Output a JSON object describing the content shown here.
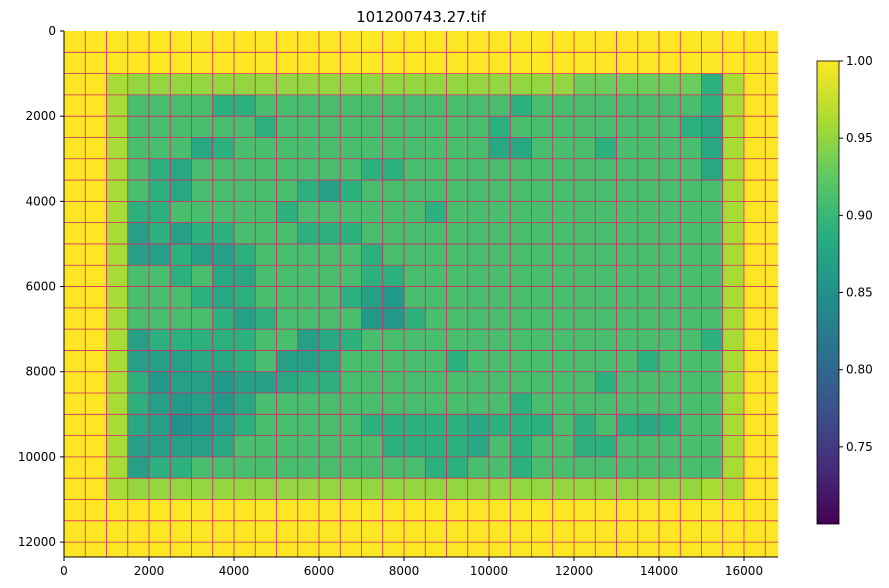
{
  "chart_data": {
    "type": "heatmap",
    "title": "101200743.27.tif",
    "xlabel": "",
    "ylabel": "",
    "xlim": [
      0,
      16800
    ],
    "ylim": [
      12350,
      0
    ],
    "cell_size": 500,
    "x_ticks": [
      0,
      2000,
      4000,
      6000,
      8000,
      10000,
      12000,
      14000,
      16000
    ],
    "y_ticks": [
      0,
      2000,
      4000,
      6000,
      8000,
      10000,
      12000
    ],
    "colorbar": {
      "colormap": "viridis",
      "range": [
        0.7,
        1.0
      ],
      "ticks": [
        "0.75",
        "0.80",
        "0.85",
        "0.90",
        "0.95",
        "1.00"
      ]
    },
    "grid_line_color": "#d6266a",
    "values": [
      [
        1.0,
        1.0,
        1.0,
        1.0,
        1.0,
        1.0,
        1.0,
        1.0,
        1.0,
        1.0,
        1.0,
        1.0,
        1.0,
        1.0,
        1.0,
        1.0,
        1.0,
        1.0,
        1.0,
        1.0,
        1.0,
        1.0,
        1.0,
        1.0,
        1.0,
        1.0,
        1.0,
        1.0,
        1.0,
        1.0,
        1.0,
        1.0,
        1.0,
        1.0
      ],
      [
        1.0,
        1.0,
        1.0,
        1.0,
        1.0,
        1.0,
        1.0,
        1.0,
        1.0,
        1.0,
        1.0,
        1.0,
        1.0,
        1.0,
        1.0,
        1.0,
        1.0,
        1.0,
        1.0,
        1.0,
        1.0,
        1.0,
        1.0,
        1.0,
        1.0,
        1.0,
        1.0,
        1.0,
        1.0,
        1.0,
        1.0,
        1.0,
        1.0,
        1.0
      ],
      [
        1.0,
        1.0,
        0.96,
        0.95,
        0.95,
        0.95,
        0.95,
        0.95,
        0.95,
        0.95,
        0.95,
        0.95,
        0.95,
        0.95,
        0.95,
        0.95,
        0.95,
        0.95,
        0.95,
        0.95,
        0.95,
        0.95,
        0.95,
        0.95,
        0.93,
        0.93,
        0.93,
        0.93,
        0.93,
        0.93,
        0.89,
        0.96,
        1.0,
        1.0
      ],
      [
        1.0,
        1.0,
        0.96,
        0.91,
        0.91,
        0.91,
        0.91,
        0.89,
        0.89,
        0.91,
        0.91,
        0.91,
        0.91,
        0.91,
        0.91,
        0.91,
        0.91,
        0.91,
        0.91,
        0.91,
        0.91,
        0.89,
        0.91,
        0.91,
        0.91,
        0.91,
        0.91,
        0.91,
        0.91,
        0.91,
        0.89,
        0.96,
        1.0,
        1.0
      ],
      [
        1.0,
        1.0,
        0.96,
        0.91,
        0.91,
        0.91,
        0.91,
        0.91,
        0.91,
        0.89,
        0.91,
        0.91,
        0.91,
        0.91,
        0.91,
        0.91,
        0.91,
        0.91,
        0.91,
        0.91,
        0.89,
        0.91,
        0.91,
        0.91,
        0.91,
        0.91,
        0.91,
        0.91,
        0.91,
        0.89,
        0.88,
        0.96,
        1.0,
        1.0
      ],
      [
        1.0,
        1.0,
        0.96,
        0.91,
        0.91,
        0.91,
        0.88,
        0.89,
        0.91,
        0.91,
        0.91,
        0.91,
        0.91,
        0.91,
        0.91,
        0.91,
        0.91,
        0.91,
        0.91,
        0.91,
        0.88,
        0.88,
        0.91,
        0.91,
        0.91,
        0.89,
        0.91,
        0.91,
        0.91,
        0.91,
        0.88,
        0.96,
        1.0,
        1.0
      ],
      [
        1.0,
        1.0,
        0.96,
        0.91,
        0.89,
        0.88,
        0.91,
        0.91,
        0.91,
        0.91,
        0.91,
        0.91,
        0.91,
        0.91,
        0.89,
        0.89,
        0.91,
        0.91,
        0.91,
        0.91,
        0.91,
        0.91,
        0.91,
        0.91,
        0.91,
        0.91,
        0.91,
        0.91,
        0.91,
        0.91,
        0.88,
        0.96,
        1.0,
        1.0
      ],
      [
        1.0,
        1.0,
        0.96,
        0.91,
        0.89,
        0.88,
        0.91,
        0.91,
        0.91,
        0.91,
        0.91,
        0.89,
        0.87,
        0.89,
        0.91,
        0.91,
        0.91,
        0.91,
        0.91,
        0.91,
        0.91,
        0.91,
        0.91,
        0.91,
        0.91,
        0.91,
        0.91,
        0.91,
        0.91,
        0.91,
        0.91,
        0.96,
        1.0,
        1.0
      ],
      [
        1.0,
        1.0,
        0.96,
        0.89,
        0.89,
        0.91,
        0.91,
        0.91,
        0.91,
        0.91,
        0.89,
        0.91,
        0.91,
        0.91,
        0.91,
        0.91,
        0.91,
        0.89,
        0.91,
        0.91,
        0.91,
        0.91,
        0.91,
        0.91,
        0.91,
        0.91,
        0.91,
        0.91,
        0.91,
        0.91,
        0.91,
        0.96,
        1.0,
        1.0
      ],
      [
        1.0,
        1.0,
        0.96,
        0.87,
        0.89,
        0.87,
        0.89,
        0.89,
        0.91,
        0.91,
        0.91,
        0.89,
        0.89,
        0.89,
        0.91,
        0.91,
        0.91,
        0.91,
        0.91,
        0.91,
        0.91,
        0.91,
        0.91,
        0.91,
        0.91,
        0.91,
        0.91,
        0.91,
        0.91,
        0.91,
        0.91,
        0.96,
        1.0,
        1.0
      ],
      [
        1.0,
        1.0,
        0.96,
        0.87,
        0.87,
        0.89,
        0.87,
        0.87,
        0.89,
        0.91,
        0.91,
        0.91,
        0.91,
        0.91,
        0.89,
        0.91,
        0.91,
        0.91,
        0.91,
        0.91,
        0.91,
        0.91,
        0.91,
        0.91,
        0.91,
        0.91,
        0.91,
        0.91,
        0.91,
        0.91,
        0.91,
        0.96,
        1.0,
        1.0
      ],
      [
        1.0,
        1.0,
        0.96,
        0.91,
        0.91,
        0.89,
        0.91,
        0.88,
        0.88,
        0.91,
        0.91,
        0.91,
        0.91,
        0.91,
        0.89,
        0.89,
        0.91,
        0.91,
        0.91,
        0.91,
        0.91,
        0.91,
        0.91,
        0.91,
        0.91,
        0.91,
        0.91,
        0.91,
        0.91,
        0.91,
        0.91,
        0.96,
        1.0,
        1.0
      ],
      [
        1.0,
        1.0,
        0.96,
        0.91,
        0.91,
        0.91,
        0.89,
        0.88,
        0.89,
        0.91,
        0.91,
        0.91,
        0.91,
        0.89,
        0.87,
        0.86,
        0.91,
        0.91,
        0.91,
        0.91,
        0.91,
        0.91,
        0.91,
        0.91,
        0.91,
        0.91,
        0.91,
        0.91,
        0.91,
        0.91,
        0.91,
        0.96,
        1.0,
        1.0
      ],
      [
        1.0,
        1.0,
        0.96,
        0.91,
        0.91,
        0.91,
        0.91,
        0.89,
        0.87,
        0.89,
        0.91,
        0.91,
        0.91,
        0.91,
        0.86,
        0.86,
        0.89,
        0.91,
        0.91,
        0.91,
        0.91,
        0.91,
        0.91,
        0.91,
        0.91,
        0.91,
        0.91,
        0.91,
        0.91,
        0.91,
        0.91,
        0.96,
        1.0,
        1.0
      ],
      [
        1.0,
        1.0,
        0.96,
        0.87,
        0.89,
        0.89,
        0.89,
        0.89,
        0.89,
        0.91,
        0.91,
        0.87,
        0.88,
        0.89,
        0.91,
        0.91,
        0.91,
        0.91,
        0.91,
        0.91,
        0.91,
        0.91,
        0.91,
        0.91,
        0.91,
        0.91,
        0.91,
        0.91,
        0.91,
        0.91,
        0.89,
        0.96,
        1.0,
        1.0
      ],
      [
        1.0,
        1.0,
        0.96,
        0.87,
        0.87,
        0.87,
        0.88,
        0.88,
        0.89,
        0.91,
        0.87,
        0.87,
        0.88,
        0.91,
        0.91,
        0.91,
        0.91,
        0.91,
        0.89,
        0.91,
        0.91,
        0.91,
        0.91,
        0.91,
        0.91,
        0.91,
        0.91,
        0.89,
        0.91,
        0.91,
        0.91,
        0.96,
        1.0,
        1.0
      ],
      [
        1.0,
        1.0,
        0.96,
        0.89,
        0.86,
        0.87,
        0.87,
        0.86,
        0.87,
        0.87,
        0.88,
        0.89,
        0.89,
        0.91,
        0.91,
        0.91,
        0.91,
        0.91,
        0.91,
        0.91,
        0.91,
        0.91,
        0.91,
        0.91,
        0.91,
        0.89,
        0.91,
        0.91,
        0.91,
        0.91,
        0.91,
        0.96,
        1.0,
        1.0
      ],
      [
        1.0,
        1.0,
        0.96,
        0.89,
        0.87,
        0.86,
        0.87,
        0.86,
        0.88,
        0.91,
        0.91,
        0.91,
        0.91,
        0.91,
        0.91,
        0.91,
        0.91,
        0.91,
        0.91,
        0.91,
        0.91,
        0.89,
        0.91,
        0.91,
        0.91,
        0.91,
        0.91,
        0.91,
        0.91,
        0.91,
        0.91,
        0.96,
        1.0,
        1.0
      ],
      [
        1.0,
        1.0,
        0.96,
        0.88,
        0.87,
        0.85,
        0.86,
        0.87,
        0.89,
        0.91,
        0.91,
        0.91,
        0.91,
        0.91,
        0.89,
        0.89,
        0.89,
        0.89,
        0.89,
        0.88,
        0.89,
        0.89,
        0.89,
        0.91,
        0.89,
        0.91,
        0.89,
        0.88,
        0.89,
        0.91,
        0.91,
        0.96,
        1.0,
        1.0
      ],
      [
        1.0,
        1.0,
        0.96,
        0.87,
        0.87,
        0.87,
        0.87,
        0.88,
        0.91,
        0.91,
        0.91,
        0.91,
        0.91,
        0.91,
        0.91,
        0.89,
        0.89,
        0.89,
        0.89,
        0.88,
        0.91,
        0.89,
        0.91,
        0.91,
        0.89,
        0.89,
        0.91,
        0.91,
        0.91,
        0.91,
        0.91,
        0.96,
        1.0,
        1.0
      ],
      [
        1.0,
        1.0,
        0.96,
        0.87,
        0.89,
        0.89,
        0.91,
        0.91,
        0.91,
        0.91,
        0.91,
        0.91,
        0.91,
        0.91,
        0.91,
        0.91,
        0.91,
        0.89,
        0.89,
        0.91,
        0.91,
        0.89,
        0.91,
        0.91,
        0.91,
        0.91,
        0.91,
        0.91,
        0.91,
        0.91,
        0.91,
        0.96,
        1.0,
        1.0
      ],
      [
        1.0,
        1.0,
        0.96,
        0.95,
        0.95,
        0.95,
        0.95,
        0.95,
        0.95,
        0.95,
        0.95,
        0.95,
        0.95,
        0.95,
        0.95,
        0.95,
        0.95,
        0.95,
        0.95,
        0.95,
        0.95,
        0.95,
        0.95,
        0.95,
        0.95,
        0.95,
        0.95,
        0.95,
        0.95,
        0.95,
        0.96,
        0.96,
        1.0,
        1.0
      ],
      [
        1.0,
        1.0,
        1.0,
        1.0,
        1.0,
        1.0,
        1.0,
        1.0,
        1.0,
        1.0,
        1.0,
        1.0,
        1.0,
        1.0,
        1.0,
        1.0,
        1.0,
        1.0,
        1.0,
        1.0,
        1.0,
        1.0,
        1.0,
        1.0,
        1.0,
        1.0,
        1.0,
        1.0,
        1.0,
        1.0,
        1.0,
        1.0,
        1.0,
        1.0
      ],
      [
        1.0,
        1.0,
        1.0,
        1.0,
        1.0,
        1.0,
        1.0,
        1.0,
        1.0,
        1.0,
        1.0,
        1.0,
        1.0,
        1.0,
        1.0,
        1.0,
        1.0,
        1.0,
        1.0,
        1.0,
        1.0,
        1.0,
        1.0,
        1.0,
        1.0,
        1.0,
        1.0,
        1.0,
        1.0,
        1.0,
        1.0,
        1.0,
        1.0,
        1.0
      ],
      [
        1.0,
        1.0,
        1.0,
        1.0,
        1.0,
        1.0,
        1.0,
        1.0,
        1.0,
        1.0,
        1.0,
        1.0,
        1.0,
        1.0,
        1.0,
        1.0,
        1.0,
        1.0,
        1.0,
        1.0,
        1.0,
        1.0,
        1.0,
        1.0,
        1.0,
        1.0,
        1.0,
        1.0,
        1.0,
        1.0,
        1.0,
        1.0,
        1.0,
        1.0
      ]
    ]
  }
}
